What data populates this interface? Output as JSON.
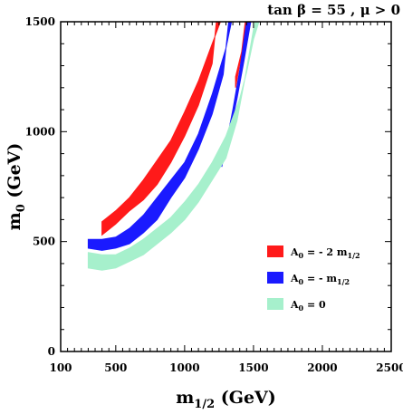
{
  "chart_data": {
    "type": "area",
    "title": "tan β = 55 , μ > 0",
    "xlabel": {
      "main": "m",
      "sub": "1/2",
      "unit": " (GeV)"
    },
    "ylabel": {
      "main": "m",
      "sub": "0",
      "unit": " (GeV)"
    },
    "xlim": [
      100,
      2500
    ],
    "ylim": [
      0,
      1500
    ],
    "xticks": [
      100,
      500,
      1000,
      1500,
      2000,
      2500
    ],
    "yticks": [
      0,
      500,
      1000,
      1500
    ],
    "grid": false,
    "legend_position": "lower-right",
    "series": [
      {
        "name_parts": [
          "A",
          "0",
          " = - 2 m",
          "1/2"
        ],
        "color": "#ff1a1a",
        "bands": [
          {
            "upper": [
              [
                400,
                590
              ],
              [
                500,
                640
              ],
              [
                600,
                700
              ],
              [
                700,
                780
              ],
              [
                800,
                870
              ],
              [
                900,
                960
              ],
              [
                1000,
                1090
              ],
              [
                1100,
                1230
              ],
              [
                1200,
                1400
              ],
              [
                1260,
                1500
              ]
            ],
            "lower": [
              [
                400,
                530
              ],
              [
                500,
                580
              ],
              [
                600,
                640
              ],
              [
                700,
                690
              ],
              [
                800,
                760
              ],
              [
                900,
                860
              ],
              [
                1000,
                980
              ],
              [
                1100,
                1120
              ],
              [
                1200,
                1310
              ],
              [
                1230,
                1500
              ]
            ]
          },
          {
            "upper": [
              [
                1370,
                1250
              ],
              [
                1420,
                1380
              ],
              [
                1460,
                1500
              ]
            ],
            "lower": [
              [
                1370,
                1200
              ],
              [
                1410,
                1340
              ],
              [
                1440,
                1500
              ]
            ]
          }
        ]
      },
      {
        "name_parts": [
          "A",
          "0",
          " = - m",
          "1/2"
        ],
        "color": "#1a1aff",
        "bands": [
          {
            "upper": [
              [
                300,
                510
              ],
              [
                400,
                510
              ],
              [
                500,
                520
              ],
              [
                600,
                560
              ],
              [
                700,
                620
              ],
              [
                800,
                700
              ],
              [
                900,
                780
              ],
              [
                1000,
                860
              ],
              [
                1100,
                990
              ],
              [
                1200,
                1170
              ],
              [
                1300,
                1380
              ],
              [
                1340,
                1500
              ]
            ],
            "lower": [
              [
                300,
                470
              ],
              [
                400,
                460
              ],
              [
                500,
                470
              ],
              [
                600,
                490
              ],
              [
                700,
                540
              ],
              [
                800,
                600
              ],
              [
                900,
                700
              ],
              [
                1000,
                790
              ],
              [
                1100,
                920
              ],
              [
                1200,
                1080
              ],
              [
                1280,
                1260
              ],
              [
                1320,
                1500
              ]
            ]
          },
          {
            "upper": [
              [
                1290,
                900
              ],
              [
                1330,
                1000
              ],
              [
                1380,
                1150
              ],
              [
                1430,
                1320
              ],
              [
                1480,
                1500
              ]
            ],
            "lower": [
              [
                1270,
                840
              ],
              [
                1300,
                940
              ],
              [
                1350,
                1100
              ],
              [
                1400,
                1280
              ],
              [
                1450,
                1500
              ]
            ]
          }
        ]
      },
      {
        "name_parts": [
          "A",
          "0",
          " = 0"
        ],
        "color": "#a6f0cc",
        "bands": [
          {
            "upper": [
              [
                300,
                450
              ],
              [
                400,
                440
              ],
              [
                500,
                440
              ],
              [
                600,
                470
              ],
              [
                700,
                510
              ],
              [
                800,
                560
              ],
              [
                900,
                610
              ],
              [
                1000,
                680
              ],
              [
                1100,
                760
              ],
              [
                1200,
                860
              ],
              [
                1300,
                980
              ],
              [
                1400,
                1150
              ],
              [
                1450,
                1270
              ],
              [
                1500,
                1420
              ],
              [
                1540,
                1500
              ]
            ],
            "lower": [
              [
                300,
                380
              ],
              [
                400,
                370
              ],
              [
                500,
                380
              ],
              [
                600,
                410
              ],
              [
                700,
                440
              ],
              [
                800,
                490
              ],
              [
                900,
                540
              ],
              [
                1000,
                600
              ],
              [
                1100,
                680
              ],
              [
                1200,
                780
              ],
              [
                1300,
                880
              ],
              [
                1380,
                1050
              ],
              [
                1440,
                1250
              ],
              [
                1490,
                1430
              ],
              [
                1510,
                1500
              ]
            ]
          }
        ]
      }
    ]
  }
}
